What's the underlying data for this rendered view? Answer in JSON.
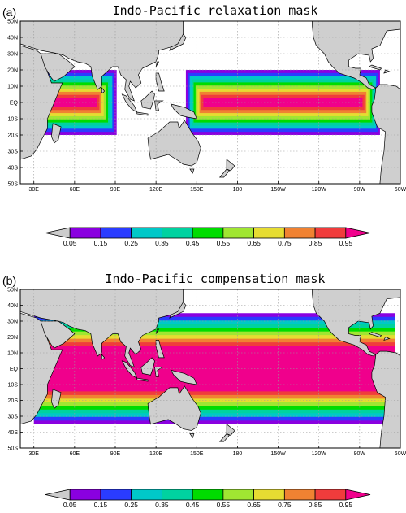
{
  "chart_data": [
    {
      "type": "heatmap",
      "panel_label": "(a)",
      "title": "Indo-Pacific relaxation mask",
      "x_ticks": [
        "30E",
        "60E",
        "90E",
        "120E",
        "150E",
        "180",
        "150W",
        "120W",
        "90W",
        "60W"
      ],
      "y_ticks": [
        "50N",
        "40N",
        "30N",
        "20N",
        "10N",
        "EQ",
        "10S",
        "20S",
        "30S",
        "40S",
        "50S"
      ],
      "xlim": [
        20,
        300
      ],
      "ylim": [
        -50,
        50
      ],
      "grid": true,
      "mask_regions": [
        {
          "name": "Indian Ocean",
          "lon": [
            40,
            90
          ],
          "lat": [
            -20,
            20
          ],
          "max_value": 0.95
        },
        {
          "name": "Pacific Ocean",
          "lon": [
            142,
            285
          ],
          "lat": [
            -20,
            20
          ],
          "max_value": 0.95
        }
      ],
      "colorbar": {
        "tick_labels": [
          "0.05",
          "0.15",
          "0.25",
          "0.35",
          "0.45",
          "0.55",
          "0.65",
          "0.75",
          "0.85",
          "0.95"
        ],
        "colors": [
          "#cccccc",
          "#8a00e0",
          "#2a3cff",
          "#00c8c8",
          "#00d2a0",
          "#00dc00",
          "#a0e632",
          "#e6dc32",
          "#f08232",
          "#f03c3c",
          "#f0008c"
        ]
      }
    },
    {
      "type": "heatmap",
      "panel_label": "(b)",
      "title": "Indo-Pacific compensation mask",
      "x_ticks": [
        "30E",
        "60E",
        "90E",
        "120E",
        "150E",
        "180",
        "150W",
        "120W",
        "90W",
        "60W"
      ],
      "y_ticks": [
        "50N",
        "40N",
        "30N",
        "20N",
        "10N",
        "EQ",
        "10S",
        "20S",
        "30S",
        "40S",
        "50S"
      ],
      "xlim": [
        20,
        300
      ],
      "ylim": [
        -50,
        50
      ],
      "grid": true,
      "mask_regions": [
        {
          "name": "Indo-Pacific",
          "lon": [
            30,
            295
          ],
          "lat": [
            -35,
            35
          ],
          "max_value": 0.95
        }
      ],
      "colorbar": {
        "tick_labels": [
          "0.05",
          "0.15",
          "0.25",
          "0.35",
          "0.45",
          "0.55",
          "0.65",
          "0.75",
          "0.85",
          "0.95"
        ],
        "colors": [
          "#cccccc",
          "#8a00e0",
          "#2a3cff",
          "#00c8c8",
          "#00d2a0",
          "#00dc00",
          "#a0e632",
          "#e6dc32",
          "#f08232",
          "#f03c3c",
          "#f0008c"
        ]
      }
    }
  ],
  "colors": {
    "land": "#cfcfcf",
    "coast": "#000000",
    "ocean": "#ffffff",
    "grid": "#9a9a9a"
  }
}
